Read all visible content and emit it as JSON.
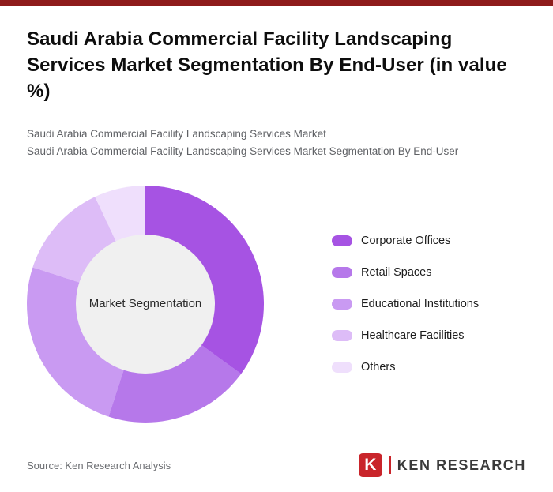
{
  "page": {
    "title": "Saudi Arabia Commercial Facility Landscaping Services Market Segmentation By End-User (in value %)",
    "subtitle1": "Saudi Arabia Commercial Facility Landscaping Services Market",
    "subtitle2": "Saudi Arabia Commercial Facility Landscaping Services Market Segmentation By End-User",
    "topbar_color": "#8e1b1b",
    "source": "Source: Ken Research Analysis"
  },
  "chart_data": {
    "type": "pie",
    "variant": "donut",
    "title": "Saudi Arabia Commercial Facility Landscaping Services Market Segmentation By End-User (in value %)",
    "center_label": "Market Segmentation",
    "categories": [
      "Corporate Offices",
      "Retail Spaces",
      "Educational Institutions",
      "Healthcare Facilities",
      "Others"
    ],
    "values": [
      35,
      20,
      25,
      13,
      7
    ],
    "unit": "%",
    "colors": [
      "#a653e3",
      "#b678ea",
      "#c99af2",
      "#ddbcf7",
      "#efdffc"
    ],
    "start_angle_deg": 0,
    "direction": "clockwise",
    "legend_position": "right",
    "hole_color": "#f0f0f0"
  },
  "logo": {
    "letter": "K",
    "text": "KEN RESEARCH",
    "red": "#c9252b"
  }
}
